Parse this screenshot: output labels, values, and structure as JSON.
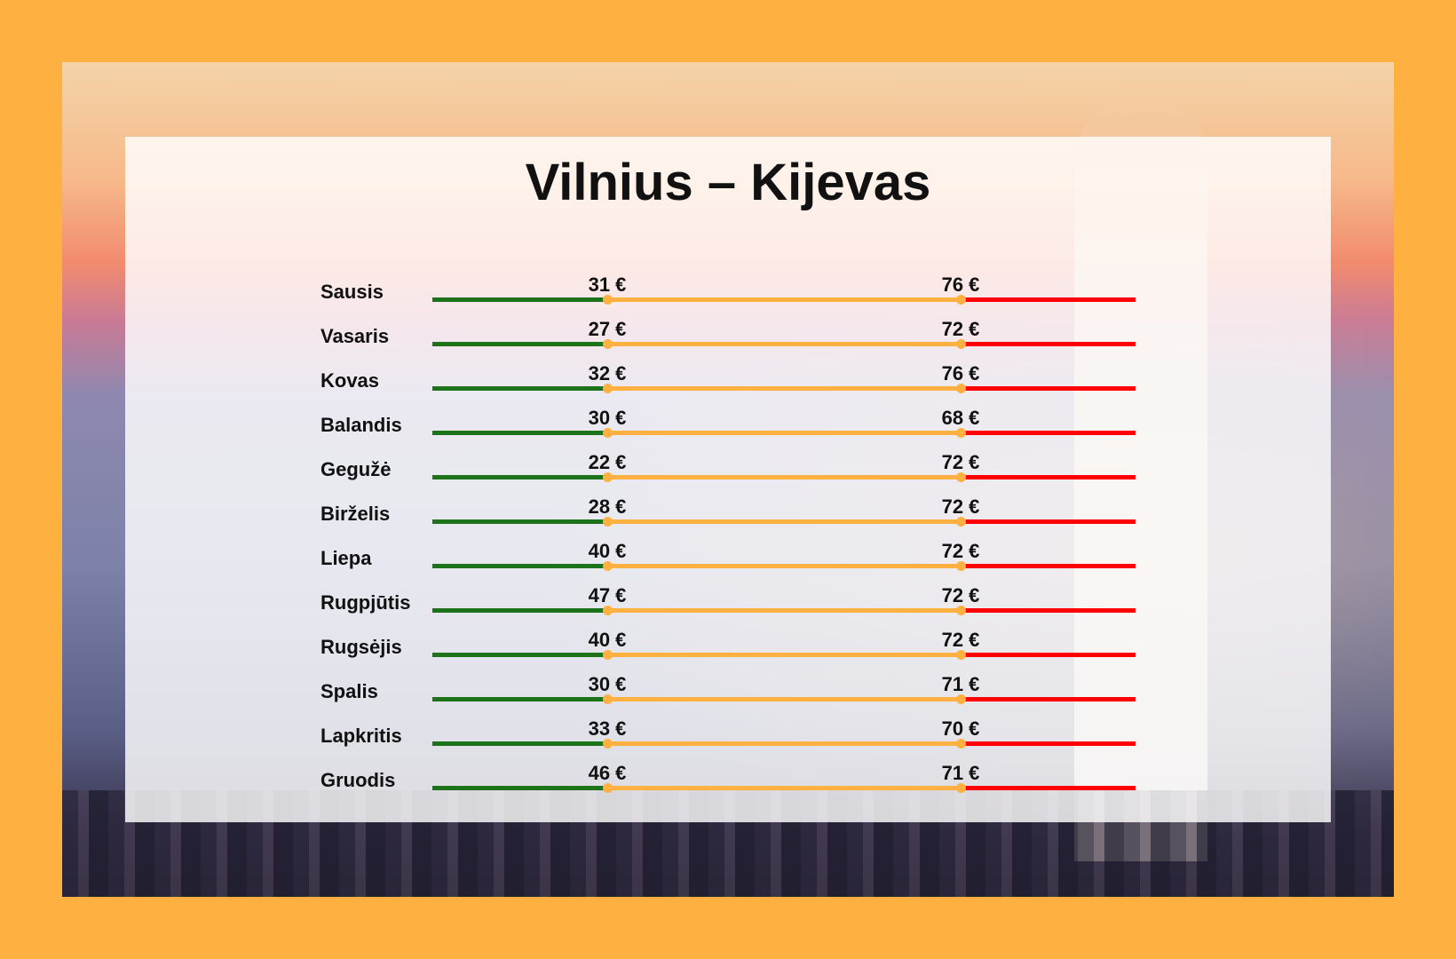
{
  "title": "Vilnius – Kijevas",
  "colors": {
    "background": "#FEB140",
    "low": "#1c7319",
    "mid": "#FEB140",
    "high": "#FF0000"
  },
  "chart_data": {
    "type": "range",
    "title": "Vilnius – Kijevas",
    "unit": "€",
    "categories": [
      "Sausis",
      "Vasaris",
      "Kovas",
      "Balandis",
      "Gegužė",
      "Birželis",
      "Liepa",
      "Rugpjūtis",
      "Rugsėjis",
      "Spalis",
      "Lapkritis",
      "Gruodis"
    ],
    "series": [
      {
        "values": [
          31,
          27,
          32,
          30,
          22,
          28,
          40,
          47,
          40,
          30,
          33,
          46
        ]
      },
      {
        "values": [
          76,
          72,
          76,
          68,
          72,
          72,
          72,
          72,
          72,
          71,
          70,
          71
        ]
      }
    ],
    "low_labels": [
      "31 €",
      "27 €",
      "32 €",
      "30 €",
      "22 €",
      "28 €",
      "40 €",
      "47 €",
      "40 €",
      "30 €",
      "33 €",
      "46 €"
    ],
    "high_labels": [
      "76 €",
      "72 €",
      "76 €",
      "68 €",
      "72 €",
      "72 €",
      "72 €",
      "72 €",
      "72 €",
      "71 €",
      "70 €",
      "71 €"
    ]
  }
}
